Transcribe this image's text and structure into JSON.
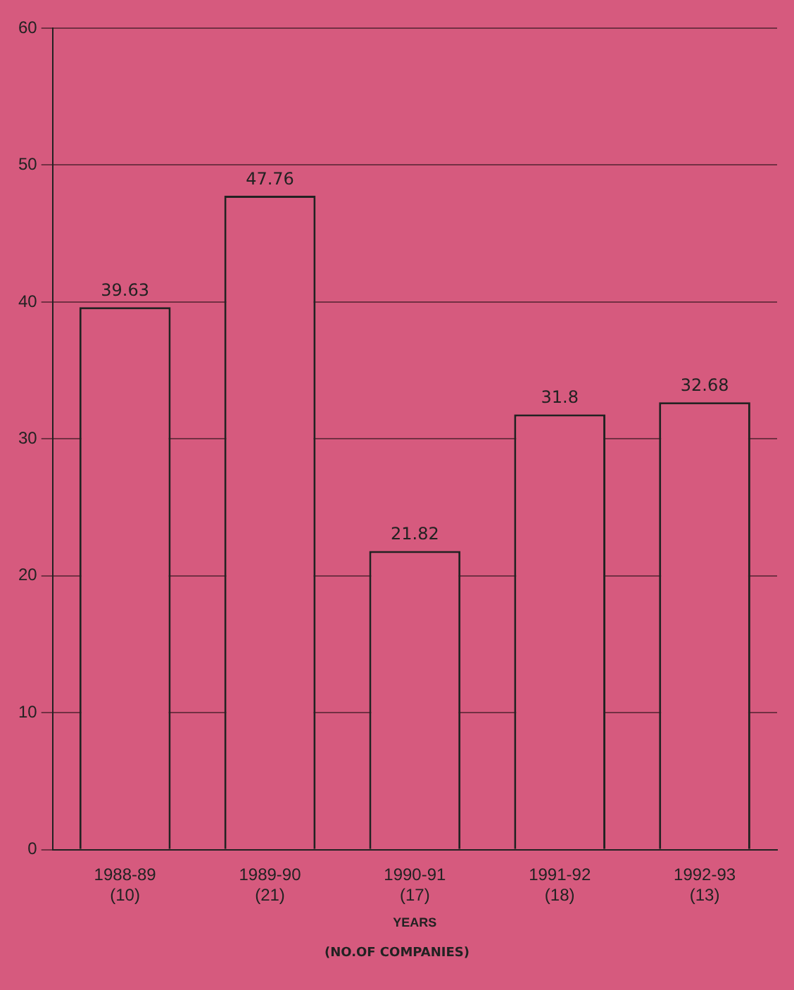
{
  "chart_data": {
    "type": "bar",
    "xlabel": "YEARS",
    "annotations": [
      "(NO.OF COMPANIES)"
    ],
    "categories": [
      "1988-89 (10)",
      "1989-90 (21)",
      "1990-91 (17)",
      "1991-92 (18)",
      "1992-93 (13)"
    ],
    "values": [
      39.63,
      47.76,
      21.82,
      31.8,
      32.68
    ],
    "color": "#d65a7e",
    "ylim": [
      0,
      60
    ],
    "yticks": [
      0,
      10,
      20,
      30,
      40,
      50,
      60
    ],
    "grid": "y",
    "data_labels": true
  }
}
